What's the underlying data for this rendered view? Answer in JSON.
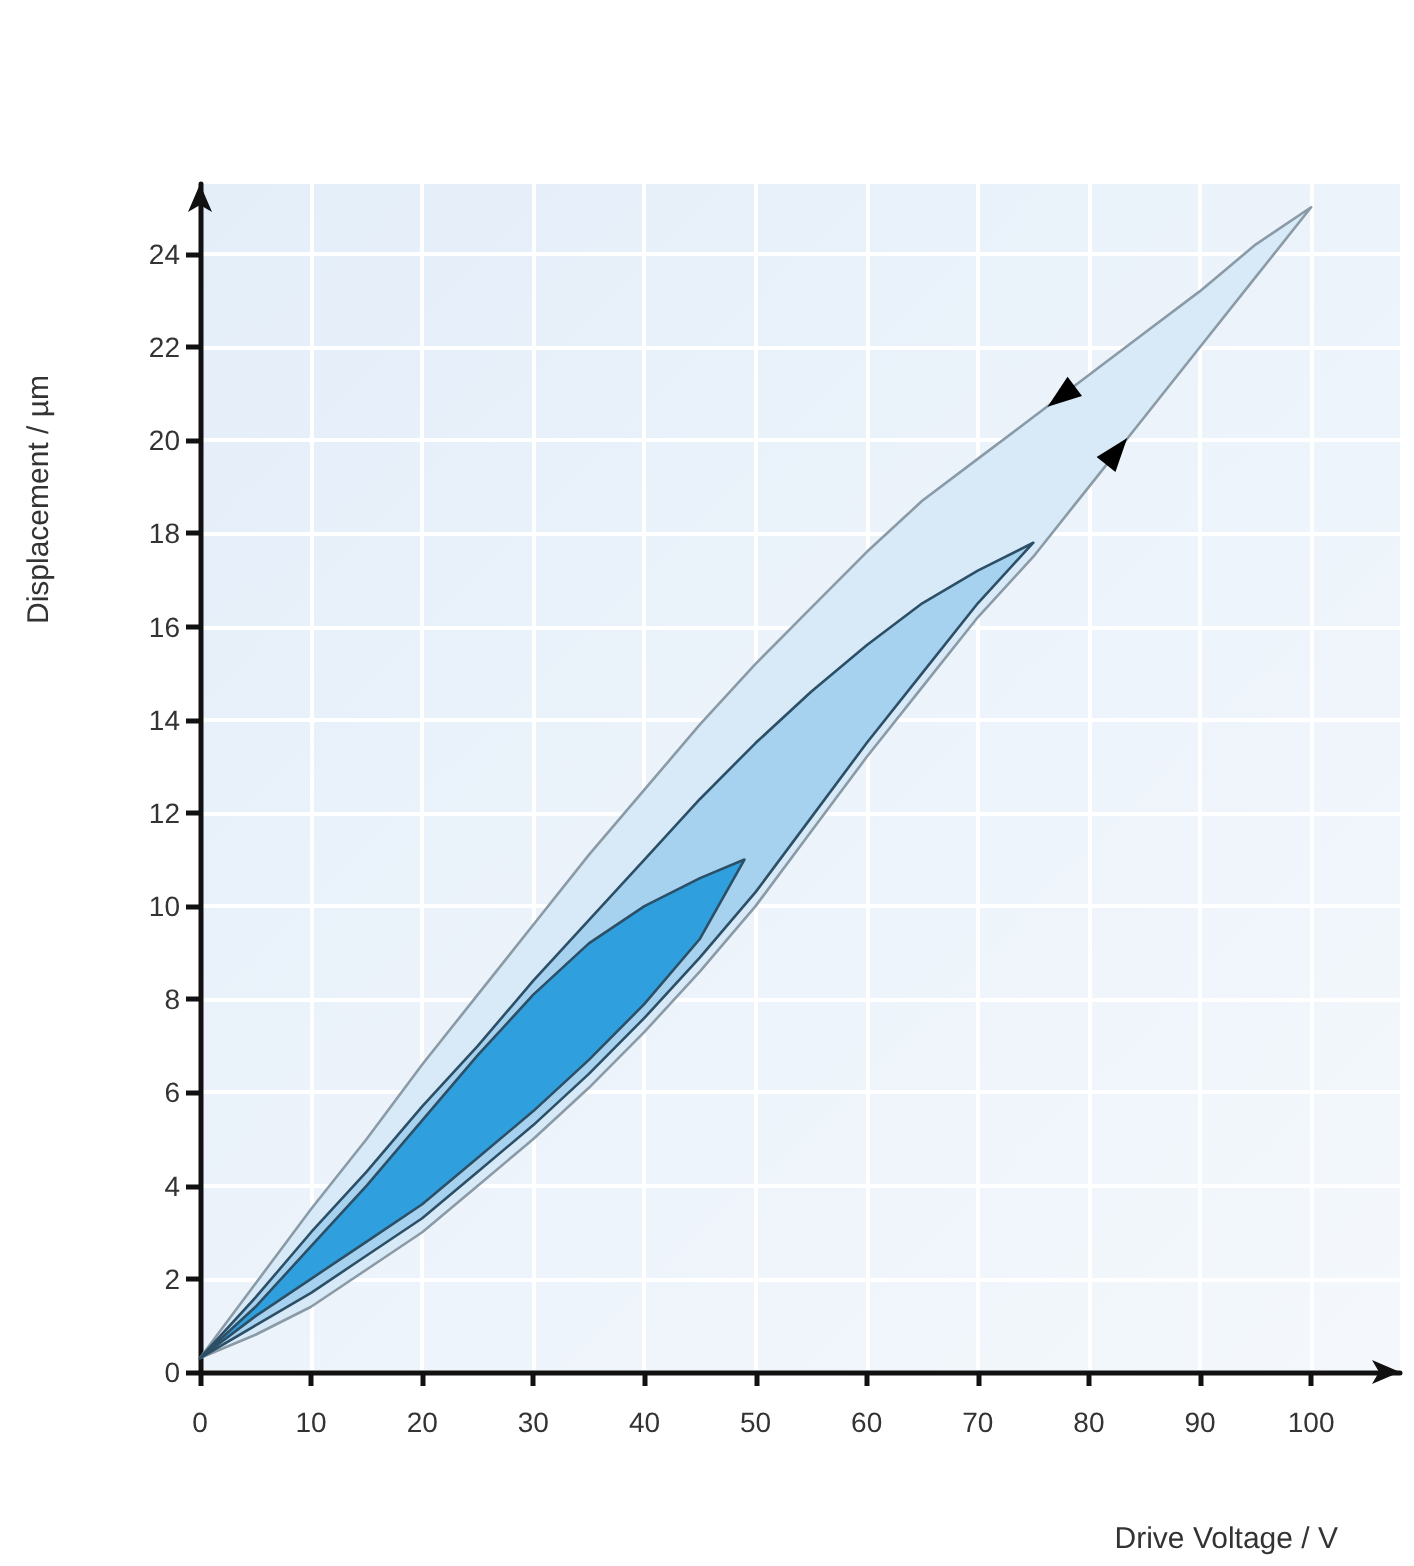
{
  "chart_data": {
    "type": "area",
    "xlabel": "Drive Voltage / V",
    "ylabel": "Displacement / µm",
    "xlim": [
      0,
      108
    ],
    "xticks": [
      0,
      10,
      20,
      30,
      40,
      50,
      60,
      70,
      80,
      90,
      100
    ],
    "ylim": [
      0,
      25.5
    ],
    "yticks": [
      0,
      2,
      4,
      6,
      8,
      10,
      12,
      14,
      16,
      18,
      20,
      22,
      24
    ],
    "grid": true,
    "series": [
      {
        "color": "#d8eaf8",
        "x": [
          0,
          5,
          10,
          15,
          20,
          25,
          30,
          35,
          40,
          45,
          50,
          55,
          60,
          65,
          70,
          75,
          80,
          85,
          90,
          95,
          100,
          95,
          90,
          85,
          80,
          75,
          70,
          65,
          60,
          55,
          50,
          45,
          40,
          35,
          30,
          25,
          20,
          15,
          10,
          5,
          0
        ],
        "values": [
          0.3,
          0.8,
          1.4,
          2.2,
          3.0,
          4.0,
          5.0,
          6.1,
          7.3,
          8.6,
          10.0,
          11.6,
          13.2,
          14.7,
          16.2,
          17.5,
          19.0,
          20.5,
          22.0,
          23.5,
          25,
          24.2,
          23.2,
          22.3,
          21.4,
          20.5,
          19.6,
          18.7,
          17.6,
          16.4,
          15.2,
          13.9,
          12.5,
          11.1,
          9.6,
          8.1,
          6.6,
          5.0,
          3.5,
          1.9,
          0.3
        ]
      },
      {
        "color": "#a6d2f0",
        "x": [
          0,
          5,
          10,
          15,
          20,
          25,
          30,
          35,
          40,
          45,
          50,
          55,
          60,
          65,
          70,
          75,
          70,
          65,
          60,
          55,
          50,
          45,
          40,
          35,
          30,
          25,
          20,
          15,
          10,
          5,
          0
        ],
        "values": [
          0.3,
          1.0,
          1.7,
          2.5,
          3.3,
          4.3,
          5.3,
          6.4,
          7.6,
          8.9,
          10.3,
          11.9,
          13.5,
          15.0,
          16.5,
          17.8,
          17.2,
          16.5,
          15.6,
          14.6,
          13.5,
          12.3,
          11.0,
          9.7,
          8.4,
          7.0,
          5.7,
          4.3,
          3.0,
          1.6,
          0.3
        ]
      },
      {
        "color": "#2f9fdd",
        "x": [
          0,
          5,
          10,
          15,
          20,
          25,
          30,
          35,
          40,
          45,
          49,
          45,
          40,
          35,
          30,
          25,
          20,
          15,
          10,
          5,
          0
        ],
        "values": [
          0.3,
          1.2,
          2.0,
          2.8,
          3.6,
          4.6,
          5.6,
          6.7,
          7.9,
          9.3,
          11,
          10.6,
          10.0,
          9.2,
          8.1,
          6.8,
          5.4,
          4.0,
          2.7,
          1.4,
          0.3
        ]
      }
    ]
  }
}
